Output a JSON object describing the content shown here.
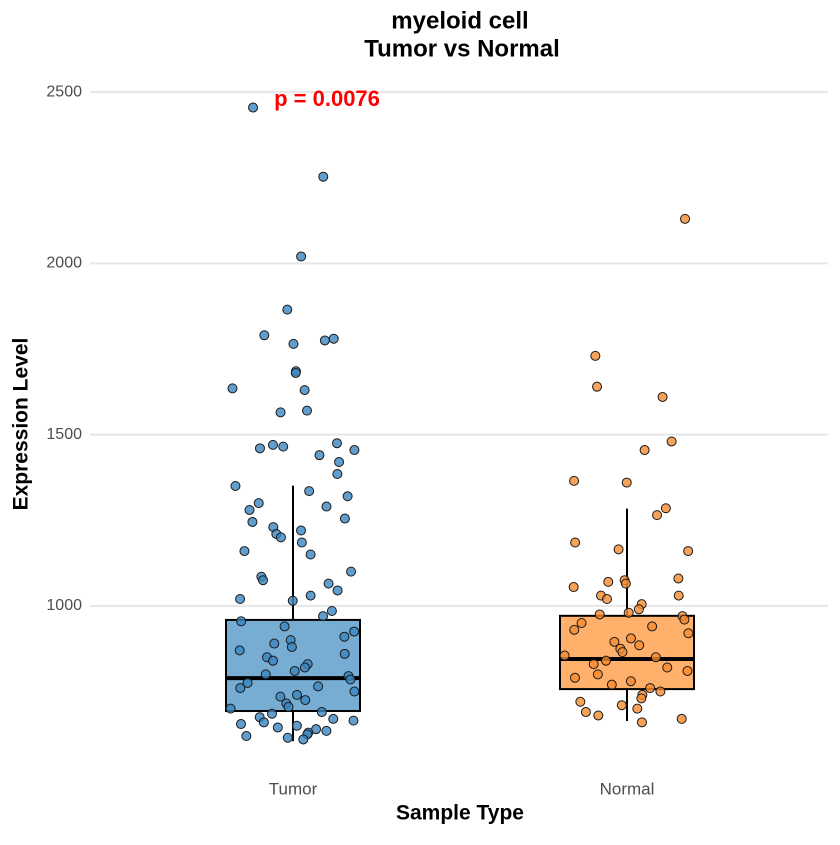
{
  "chart_data": {
    "type": "box",
    "title": "myeloid cell",
    "subtitle": "Tumor vs Normal",
    "annotation": "p = 0.0076",
    "x_label": "Sample Type",
    "y_label": "Expression Level",
    "categories": [
      "Tumor",
      "Normal"
    ],
    "ylim": [
      550,
      2550
    ],
    "yticks": [
      1000,
      1500,
      2000,
      2500
    ],
    "grid": true,
    "boxes": [
      {
        "whislo": 605,
        "q1": 693,
        "median": 789,
        "q3": 959,
        "whishi": 1351,
        "fill": "#77acd3",
        "point_color": "#3a86c0",
        "points": [
          2455,
          2253,
          2020,
          1865,
          1790,
          1780,
          1775,
          1765,
          1685,
          1680,
          1635,
          1630,
          1570,
          1565,
          1475,
          1470,
          1465,
          1460,
          1455,
          1440,
          1420,
          1385,
          1350,
          1335,
          1320,
          1300,
          1290,
          1280,
          1255,
          1245,
          1230,
          1220,
          1210,
          1200,
          1185,
          1160,
          1150,
          1100,
          1085,
          1075,
          1065,
          1045,
          1030,
          1020,
          1015,
          985,
          970,
          955,
          940,
          925,
          910,
          900,
          890,
          880,
          870,
          860,
          850,
          840,
          830,
          820,
          810,
          800,
          795,
          785,
          775,
          765,
          760,
          750,
          740,
          735,
          725,
          715,
          705,
          700,
          690,
          685,
          675,
          670,
          665,
          660,
          655,
          650,
          645,
          640,
          635,
          630,
          625,
          620,
          615,
          610
        ]
      },
      {
        "whislo": 664,
        "q1": 757,
        "median": 845,
        "q3": 971,
        "whishi": 1284,
        "fill": "#ffb06b",
        "point_color": "#f58b2e",
        "points": [
          2130,
          1730,
          1640,
          1610,
          1480,
          1455,
          1365,
          1360,
          1285,
          1265,
          1185,
          1165,
          1160,
          1080,
          1075,
          1070,
          1065,
          1055,
          1030,
          1030,
          1020,
          1005,
          990,
          980,
          975,
          970,
          960,
          950,
          940,
          930,
          920,
          905,
          895,
          885,
          875,
          865,
          855,
          850,
          840,
          830,
          820,
          810,
          800,
          790,
          780,
          770,
          760,
          750,
          740,
          730,
          720,
          710,
          700,
          690,
          680,
          670,
          660
        ]
      }
    ]
  }
}
